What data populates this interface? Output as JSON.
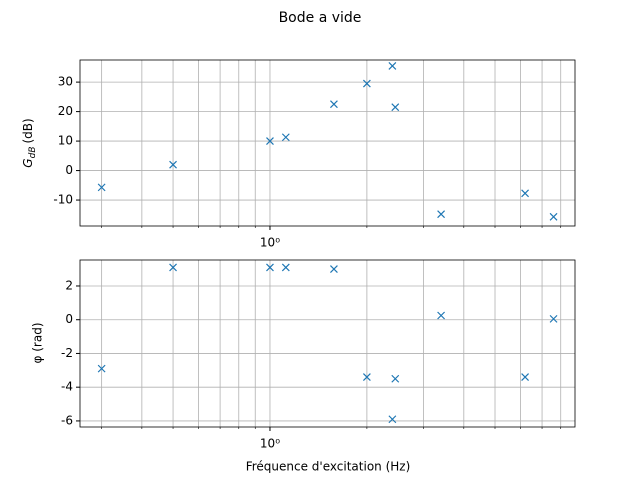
{
  "chart_data": [
    {
      "type": "scatter",
      "title": "Bode a vide",
      "ylabel": {
        "symbol": "G",
        "subscript": "dB",
        "unit": "(dB)"
      },
      "x": [
        0.3,
        0.5,
        1.0,
        1.12,
        1.58,
        2.0,
        2.4,
        2.45,
        3.4,
        6.2,
        7.6
      ],
      "series": [
        {
          "color": "#1f77b4",
          "values": [
            -5.7,
            2,
            10,
            11.3,
            22.5,
            29.5,
            35.5,
            21.5,
            -14.8,
            -7.7,
            -15.7
          ]
        }
      ],
      "xlim": [
        0.257,
        8.86
      ],
      "xscale": "log",
      "xticks": [
        {
          "value": 1,
          "label": "10⁰"
        }
      ],
      "xminor": [
        0.3,
        0.4,
        0.5,
        0.6,
        0.7,
        0.8,
        0.9,
        2,
        3,
        4,
        5,
        6,
        7,
        8
      ],
      "ylim": [
        -18.8,
        37.5
      ],
      "yticks": [
        -10,
        0,
        10,
        20,
        30
      ],
      "grid": true
    },
    {
      "type": "scatter",
      "ylabel": "φ (rad)",
      "xlabel": "Fréquence d'excitation (Hz)",
      "x": [
        0.3,
        0.5,
        1.0,
        1.12,
        1.58,
        2.0,
        2.4,
        2.45,
        3.4,
        6.2,
        7.6
      ],
      "series": [
        {
          "color": "#1f77b4",
          "values": [
            -2.9,
            3.1,
            3.1,
            3.1,
            3.0,
            -3.4,
            -5.9,
            -3.5,
            0.25,
            -3.4,
            0.05
          ]
        }
      ],
      "xlim": [
        0.257,
        8.86
      ],
      "xscale": "log",
      "xticks": [
        {
          "value": 1,
          "label": "10⁰"
        }
      ],
      "xminor": [
        0.3,
        0.4,
        0.5,
        0.6,
        0.7,
        0.8,
        0.9,
        2,
        3,
        4,
        5,
        6,
        7,
        8
      ],
      "ylim": [
        -6.36,
        3.54
      ],
      "yticks": [
        -6,
        -4,
        -2,
        0,
        2
      ],
      "grid": true
    }
  ]
}
